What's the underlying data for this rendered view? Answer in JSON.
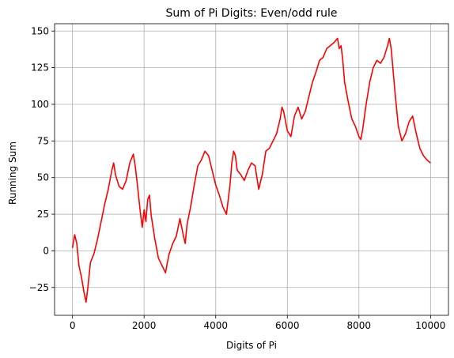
{
  "chart_data": {
    "type": "line",
    "title": "Sum of Pi Digits: Even/odd rule",
    "xlabel": "Digits of Pi",
    "ylabel": "Running Sum",
    "xlim": [
      -500,
      10500
    ],
    "ylim": [
      -44,
      155
    ],
    "xticks": [
      0,
      2000,
      4000,
      6000,
      8000,
      10000
    ],
    "yticks": [
      -25,
      0,
      25,
      50,
      75,
      100,
      125,
      150
    ],
    "xtick_labels": [
      "0",
      "2000",
      "4000",
      "6000",
      "8000",
      "10000"
    ],
    "ytick_labels": [
      "−25",
      "0",
      "25",
      "50",
      "75",
      "100",
      "125",
      "150"
    ],
    "grid": true,
    "series": [
      {
        "name": "Running Sum",
        "color": "#ff0000",
        "x": [
          0,
          60,
          120,
          180,
          250,
          320,
          380,
          430,
          500,
          600,
          700,
          800,
          900,
          1000,
          1100,
          1150,
          1200,
          1300,
          1400,
          1500,
          1600,
          1700,
          1750,
          1800,
          1900,
          1950,
          2000,
          2050,
          2100,
          2150,
          2200,
          2300,
          2400,
          2500,
          2600,
          2650,
          2700,
          2800,
          2900,
          3000,
          3100,
          3150,
          3200,
          3300,
          3400,
          3500,
          3600,
          3700,
          3800,
          3900,
          4000,
          4100,
          4200,
          4300,
          4400,
          4450,
          4500,
          4550,
          4600,
          4700,
          4800,
          4900,
          5000,
          5100,
          5200,
          5300,
          5400,
          5500,
          5600,
          5700,
          5800,
          5850,
          5900,
          6000,
          6100,
          6200,
          6300,
          6400,
          6500,
          6600,
          6700,
          6800,
          6900,
          7000,
          7100,
          7200,
          7300,
          7400,
          7450,
          7500,
          7550,
          7600,
          7700,
          7800,
          7900,
          8000,
          8050,
          8100,
          8200,
          8300,
          8400,
          8500,
          8600,
          8700,
          8800,
          8850,
          8900,
          9000,
          9100,
          9200,
          9300,
          9400,
          9500,
          9600,
          9700,
          9800,
          9900,
          10000
        ],
        "y": [
          2,
          11,
          5,
          -10,
          -18,
          -28,
          -35,
          -25,
          -8,
          -2,
          8,
          20,
          32,
          42,
          55,
          60,
          52,
          44,
          42,
          48,
          60,
          66,
          58,
          48,
          25,
          16,
          28,
          20,
          35,
          38,
          24,
          8,
          -5,
          -10,
          -15,
          -8,
          -2,
          5,
          10,
          22,
          10,
          5,
          18,
          30,
          45,
          58,
          62,
          68,
          65,
          55,
          45,
          38,
          30,
          25,
          45,
          60,
          68,
          65,
          55,
          52,
          48,
          55,
          60,
          58,
          42,
          52,
          68,
          70,
          75,
          80,
          90,
          98,
          95,
          82,
          78,
          92,
          98,
          90,
          95,
          105,
          115,
          122,
          130,
          132,
          138,
          140,
          142,
          145,
          138,
          140,
          130,
          115,
          102,
          90,
          85,
          78,
          76,
          82,
          100,
          115,
          125,
          130,
          128,
          132,
          140,
          145,
          138,
          110,
          85,
          75,
          80,
          88,
          92,
          80,
          70,
          65,
          62,
          60
        ]
      }
    ]
  }
}
